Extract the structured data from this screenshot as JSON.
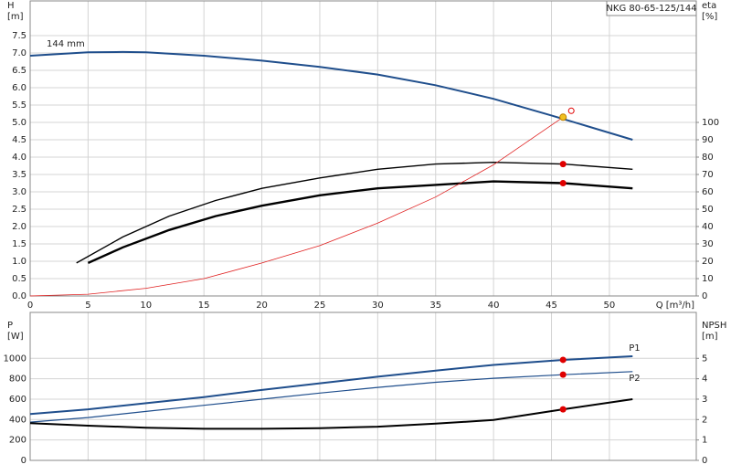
{
  "chart_data": [
    {
      "type": "line",
      "title": "NKG 80-65-125/144",
      "ylabel": "H",
      "yunit": "[m]",
      "y2label": "eta",
      "y2unit": "[%]",
      "xlabel": "Q [m³/h]",
      "annotation": "144 mm",
      "xlim": [
        0,
        57.5
      ],
      "xticks": [
        0,
        5,
        10,
        15,
        20,
        25,
        30,
        35,
        40,
        45,
        50
      ],
      "ylim": [
        0,
        8.5
      ],
      "yticks": [
        {
          "value": 0,
          "label": "0.0"
        },
        {
          "value": 0.5,
          "label": "0.5"
        },
        {
          "value": 1,
          "label": "1.0"
        },
        {
          "value": 1.5,
          "label": "1.5"
        },
        {
          "value": 2,
          "label": "2.0"
        },
        {
          "value": 2.5,
          "label": "2.5"
        },
        {
          "value": 3,
          "label": "3.0"
        },
        {
          "value": 3.5,
          "label": "3.5"
        },
        {
          "value": 4,
          "label": "4.0"
        },
        {
          "value": 4.5,
          "label": "4.5"
        },
        {
          "value": 5,
          "label": "5.0"
        },
        {
          "value": 5.5,
          "label": "5.5"
        },
        {
          "value": 6,
          "label": "6.0"
        },
        {
          "value": 6.5,
          "label": "6.5"
        },
        {
          "value": 7,
          "label": "7.0"
        },
        {
          "value": 7.5,
          "label": "7.5"
        }
      ],
      "y2lim": [
        0,
        170
      ],
      "y2ticks": [
        0,
        10,
        20,
        30,
        40,
        50,
        60,
        70,
        80,
        90,
        100
      ],
      "grid": true,
      "series": [
        {
          "color": "#1f4e8c",
          "width": 2,
          "x": [
            0,
            5,
            8,
            10,
            15,
            20,
            25,
            30,
            35,
            40,
            45,
            52
          ],
          "values": [
            6.92,
            7.02,
            7.03,
            7.02,
            6.92,
            6.78,
            6.6,
            6.38,
            6.07,
            5.68,
            5.2,
            4.5
          ]
        },
        {
          "color": "#000000",
          "width": 1.4,
          "axis": "y2",
          "x": [
            4,
            8,
            12,
            16,
            20,
            25,
            30,
            35,
            40,
            46,
            52
          ],
          "values": [
            19,
            34,
            46,
            55,
            62,
            68,
            73,
            76,
            77,
            76,
            73
          ]
        },
        {
          "color": "#000000",
          "width": 2.4,
          "axis": "y2",
          "x": [
            5,
            8,
            12,
            16,
            20,
            25,
            30,
            35,
            40,
            46,
            52
          ],
          "values": [
            19,
            28,
            38,
            46,
            52,
            58,
            62,
            64,
            66,
            65,
            62
          ]
        },
        {
          "color": "#e02020",
          "width": 0.8,
          "x": [
            0,
            5,
            10,
            15,
            20,
            25,
            30,
            35,
            40,
            46
          ],
          "values": [
            0,
            0.05,
            0.22,
            0.5,
            0.95,
            1.45,
            2.1,
            2.85,
            3.78,
            5.15
          ]
        }
      ],
      "points": [
        {
          "x": 46,
          "y": 5.15,
          "color": "#f0c020"
        },
        {
          "x": 46,
          "y": 76,
          "axis": "y2",
          "color": "#e00000"
        },
        {
          "x": 46,
          "y": 65,
          "axis": "y2",
          "color": "#e00000"
        }
      ]
    },
    {
      "type": "line",
      "ylabel": "P",
      "yunit": "[W]",
      "y2label": "NPSH",
      "y2unit": "[m]",
      "xlim": [
        0,
        57.5
      ],
      "xticks": [
        0,
        5,
        10,
        15,
        20,
        25,
        30,
        35,
        40,
        45,
        50
      ],
      "ylim": [
        0,
        1450
      ],
      "yticks": [
        0,
        200,
        400,
        600,
        800,
        1000
      ],
      "y2lim": [
        0,
        7.25
      ],
      "y2ticks": [
        0,
        1,
        2,
        3,
        4,
        5
      ],
      "grid": true,
      "series": [
        {
          "name": "P1",
          "color": "#1f4e8c",
          "width": 2,
          "x": [
            0,
            5,
            10,
            15,
            20,
            25,
            30,
            35,
            40,
            46,
            52
          ],
          "values": [
            455,
            500,
            560,
            620,
            690,
            755,
            820,
            880,
            935,
            985,
            1020
          ]
        },
        {
          "name": "P2",
          "color": "#1f4e8c",
          "width": 1.2,
          "x": [
            0,
            5,
            10,
            15,
            20,
            25,
            30,
            35,
            40,
            46,
            52
          ],
          "values": [
            375,
            420,
            480,
            540,
            600,
            660,
            715,
            765,
            805,
            840,
            870
          ]
        },
        {
          "color": "#000000",
          "width": 2,
          "axis": "y2",
          "x": [
            0,
            5,
            10,
            15,
            20,
            25,
            30,
            35,
            40,
            46,
            52
          ],
          "values": [
            1.82,
            1.7,
            1.6,
            1.55,
            1.55,
            1.58,
            1.65,
            1.8,
            1.98,
            2.5,
            3.0
          ]
        }
      ],
      "points": [
        {
          "x": 46,
          "y": 985,
          "color": "#e00000"
        },
        {
          "x": 46,
          "y": 840,
          "color": "#e00000"
        },
        {
          "x": 46,
          "y": 2.5,
          "axis": "y2",
          "color": "#e00000"
        }
      ]
    }
  ]
}
